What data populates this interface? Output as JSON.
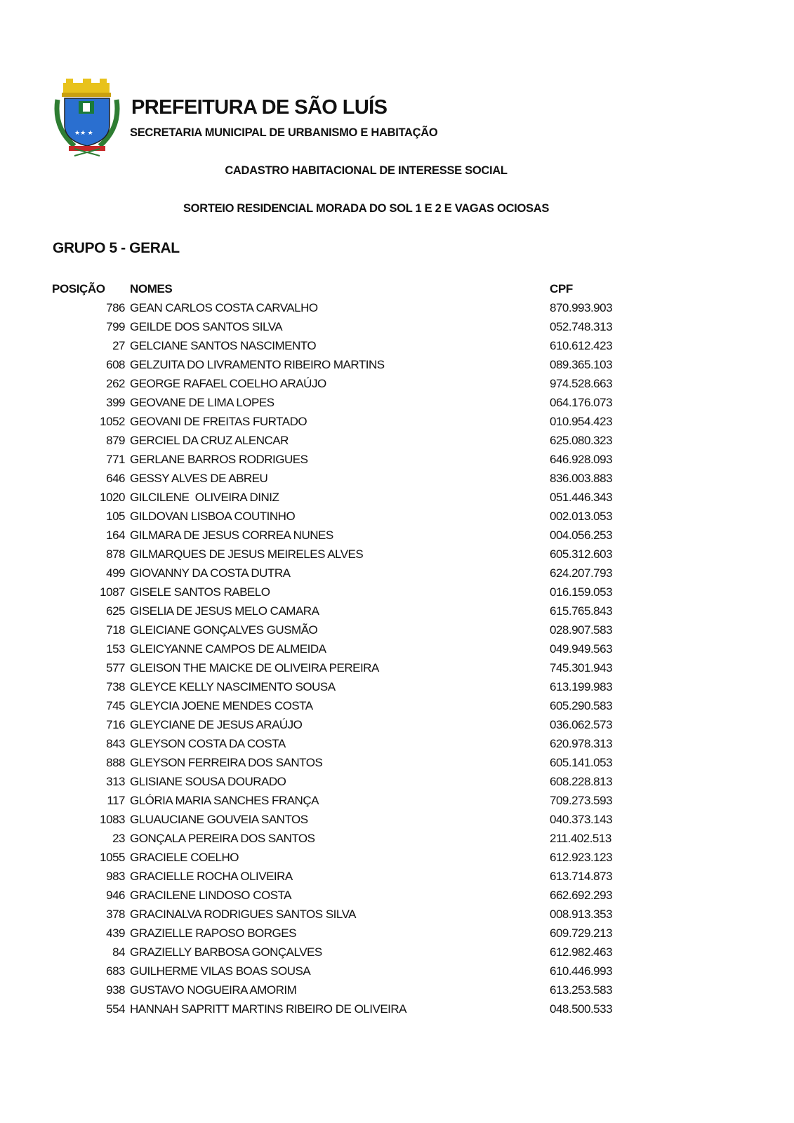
{
  "header": {
    "title": "PREFEITURA DE SÃO LUÍS",
    "subtitle": "SECRETARIA MUNICIPAL DE URBANISMO E HABITAÇÃO",
    "line1": "CADASTRO HABITACIONAL DE INTERESSE SOCIAL",
    "line2": "SORTEIO RESIDENCIAL MORADA DO SOL 1 E 2 E VAGAS OCIOSAS"
  },
  "group_title": "GRUPO 5 - GERAL",
  "columns": {
    "position": "POSIÇÃO",
    "names": "NOMES",
    "cpf": "CPF"
  },
  "rows": [
    {
      "pos": "786",
      "name": "GEAN CARLOS COSTA CARVALHO",
      "cpf": "870.993.903"
    },
    {
      "pos": "799",
      "name": "GEILDE DOS SANTOS SILVA",
      "cpf": "052.748.313"
    },
    {
      "pos": "27",
      "name": "GELCIANE SANTOS NASCIMENTO",
      "cpf": "610.612.423"
    },
    {
      "pos": "608",
      "name": "GELZUITA DO LIVRAMENTO RIBEIRO MARTINS",
      "cpf": "089.365.103"
    },
    {
      "pos": "262",
      "name": "GEORGE RAFAEL COELHO ARAÚJO",
      "cpf": "974.528.663"
    },
    {
      "pos": "399",
      "name": "GEOVANE DE LIMA LOPES",
      "cpf": "064.176.073"
    },
    {
      "pos": "1052",
      "name": "GEOVANI DE FREITAS FURTADO",
      "cpf": "010.954.423"
    },
    {
      "pos": "879",
      "name": "GERCIEL DA CRUZ ALENCAR",
      "cpf": "625.080.323"
    },
    {
      "pos": "771",
      "name": "GERLANE BARROS RODRIGUES",
      "cpf": "646.928.093"
    },
    {
      "pos": "646",
      "name": "GESSY ALVES DE ABREU",
      "cpf": "836.003.883"
    },
    {
      "pos": "1020",
      "name": "GILCILENE  OLIVEIRA DINIZ",
      "cpf": "051.446.343"
    },
    {
      "pos": "105",
      "name": "GILDOVAN LISBOA COUTINHO",
      "cpf": "002.013.053"
    },
    {
      "pos": "164",
      "name": "GILMARA DE JESUS CORREA NUNES",
      "cpf": "004.056.253"
    },
    {
      "pos": "878",
      "name": "GILMARQUES DE JESUS MEIRELES ALVES",
      "cpf": "605.312.603"
    },
    {
      "pos": "499",
      "name": "GIOVANNY DA COSTA DUTRA",
      "cpf": "624.207.793"
    },
    {
      "pos": "1087",
      "name": "GISELE SANTOS RABELO",
      "cpf": "016.159.053"
    },
    {
      "pos": "625",
      "name": "GISELIA DE JESUS MELO CAMARA",
      "cpf": "615.765.843"
    },
    {
      "pos": "718",
      "name": "GLEICIANE GONÇALVES GUSMÃO",
      "cpf": "028.907.583"
    },
    {
      "pos": "153",
      "name": "GLEICYANNE CAMPOS DE ALMEIDA",
      "cpf": "049.949.563"
    },
    {
      "pos": "577",
      "name": "GLEISON THE MAICKE DE OLIVEIRA PEREIRA",
      "cpf": "745.301.943"
    },
    {
      "pos": "738",
      "name": "GLEYCE KELLY NASCIMENTO SOUSA",
      "cpf": "613.199.983"
    },
    {
      "pos": "745",
      "name": "GLEYCIA JOENE MENDES COSTA",
      "cpf": "605.290.583"
    },
    {
      "pos": "716",
      "name": "GLEYCIANE DE JESUS ARAÚJO",
      "cpf": "036.062.573"
    },
    {
      "pos": "843",
      "name": "GLEYSON COSTA DA COSTA",
      "cpf": "620.978.313"
    },
    {
      "pos": "888",
      "name": "GLEYSON FERREIRA DOS SANTOS",
      "cpf": "605.141.053"
    },
    {
      "pos": "313",
      "name": "GLISIANE SOUSA DOURADO",
      "cpf": "608.228.813"
    },
    {
      "pos": "117",
      "name": "GLÓRIA MARIA SANCHES FRANÇA",
      "cpf": "709.273.593"
    },
    {
      "pos": "1083",
      "name": "GLUAUCIANE GOUVEIA SANTOS",
      "cpf": "040.373.143"
    },
    {
      "pos": "23",
      "name": "GONÇALA PEREIRA DOS SANTOS",
      "cpf": "211.402.513"
    },
    {
      "pos": "1055",
      "name": "GRACIELE COELHO",
      "cpf": "612.923.123"
    },
    {
      "pos": "983",
      "name": "GRACIELLE ROCHA OLIVEIRA",
      "cpf": "613.714.873"
    },
    {
      "pos": "946",
      "name": "GRACILENE LINDOSO COSTA",
      "cpf": "662.692.293"
    },
    {
      "pos": "378",
      "name": "GRACINALVA RODRIGUES SANTOS SILVA",
      "cpf": "008.913.353"
    },
    {
      "pos": "439",
      "name": "GRAZIELLE RAPOSO BORGES",
      "cpf": "609.729.213"
    },
    {
      "pos": "84",
      "name": "GRAZIELLY BARBOSA GONÇALVES",
      "cpf": "612.982.463"
    },
    {
      "pos": "683",
      "name": "GUILHERME VILAS BOAS SOUSA",
      "cpf": "610.446.993"
    },
    {
      "pos": "938",
      "name": "GUSTAVO NOGUEIRA AMORIM",
      "cpf": "613.253.583"
    },
    {
      "pos": "554",
      "name": "HANNAH SAPRITT MARTINS RIBEIRO DE OLIVEIRA",
      "cpf": "048.500.533"
    }
  ]
}
